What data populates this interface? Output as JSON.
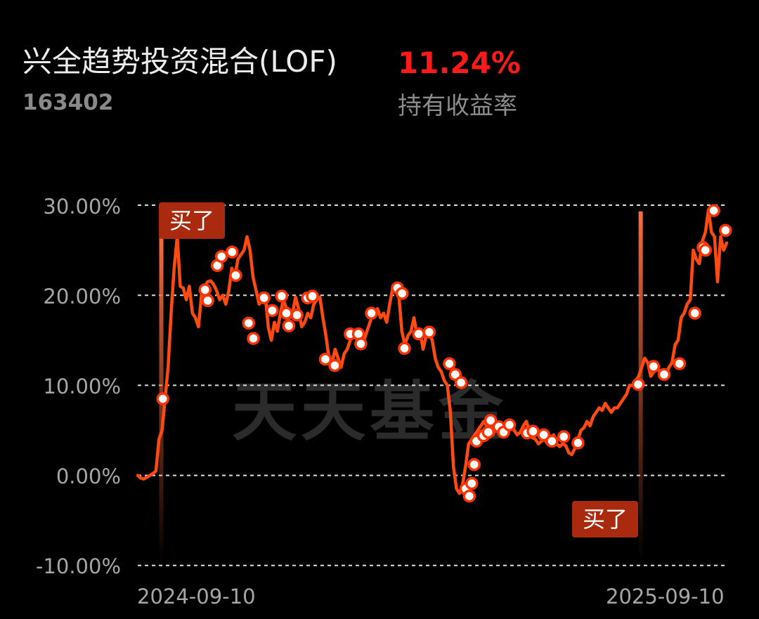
{
  "fund": {
    "name": "兴全趋势投资混合(LOF)",
    "code": "163402",
    "return_value": "11.24%",
    "return_label": "持有收益率"
  },
  "watermark": "天天基金",
  "colors": {
    "line": "#ff4a12",
    "marker_fill": "#ffffff",
    "marker_stroke": "#ff3300",
    "buy_tag_bg": "#a92a0e",
    "return_red": "#ff1a1a",
    "grid": "#dddddd"
  },
  "chart_data": {
    "type": "line",
    "y_ticks": [
      "30.00%",
      "20.00%",
      "10.00%",
      "0.00%",
      "-10.00%"
    ],
    "y_tick_values": [
      30,
      20,
      10,
      0,
      -10
    ],
    "ylim": [
      -10,
      30
    ],
    "x_tick_labels": [
      "2024-09-10",
      "2025-09-10"
    ],
    "grid": "horizontal dashed",
    "series": [
      {
        "values": [
          0,
          -0.3,
          -0.4,
          -0.2,
          0,
          0.2,
          0.5,
          4,
          5,
          8.5,
          12,
          18,
          23,
          26.5,
          21,
          20.8,
          19.5,
          21,
          18,
          17.5,
          16.5,
          20,
          21,
          21.5,
          21.6,
          21.2,
          20.5,
          19.5,
          20,
          19,
          20.5,
          23,
          22,
          24,
          24.5,
          25,
          26.5,
          25,
          22,
          20.5,
          19,
          19.5,
          20,
          16.5,
          15,
          17,
          16,
          18,
          19.5,
          18.5,
          17.5,
          18,
          19.8,
          18.5,
          16.5,
          17,
          18,
          17.5,
          19,
          19.5,
          19.8,
          17.5,
          15.5,
          13,
          12.5,
          14,
          13,
          12,
          13.5,
          14,
          15,
          15.5,
          16,
          15.5,
          14.5,
          15.5,
          16.5,
          17.5,
          18,
          18.5,
          17.5,
          18,
          17,
          19,
          20.8,
          20.5,
          20,
          16,
          14.5,
          15.5,
          16,
          17.5,
          15.5,
          16,
          14,
          15.5,
          15.8,
          15,
          13,
          12,
          11.5,
          10.5,
          10,
          7,
          1,
          -1.5,
          -2,
          -1,
          1,
          3.5,
          4,
          4.5,
          5,
          5.5,
          6,
          5.5,
          5,
          4.5,
          5.5,
          5,
          4.5,
          5.5,
          5,
          6,
          5,
          4.5,
          4.8,
          5.5,
          6,
          5,
          4.2,
          4,
          3.5,
          3.8,
          4,
          3.5,
          4.2,
          4.5,
          3.5,
          3.2,
          3.5,
          3.3,
          2.5,
          2.3,
          3,
          4,
          5,
          5.3,
          6,
          5.5,
          6.5,
          7,
          7.5,
          7.2,
          8,
          7.5,
          7,
          7.5,
          7.5,
          8,
          8.5,
          9,
          10,
          10,
          10.5,
          11,
          12,
          13,
          12.5,
          11,
          11.5,
          12,
          11.5,
          11,
          11.2,
          12,
          12.5,
          14.5,
          15,
          17.5,
          18,
          19,
          19.5,
          25,
          24,
          23.5,
          26,
          27,
          29.5,
          27,
          26.5,
          21.5,
          26.5,
          25,
          25.8
        ],
        "marker_values": [
          8.5,
          20.6,
          19.4,
          23.3,
          24.3,
          24.8,
          22.2,
          16.9,
          15.2,
          19.7,
          18.3,
          19.9,
          18.0,
          16.6,
          17.8,
          19.7,
          19.9,
          12.9,
          12.2,
          15.7,
          15.7,
          14.6,
          18.0,
          20.8,
          20.2,
          14.1,
          15.7,
          15.9,
          12.4,
          11.2,
          10.3,
          -1.5,
          -2.3,
          -0.9,
          1.2,
          3.8,
          4.4,
          4.8,
          6.1,
          5.4,
          4.8,
          5.6,
          4.7,
          4.9,
          4.5,
          3.8,
          4.3,
          3.6,
          10.1,
          12.1,
          11.2,
          12.4,
          18.0,
          25.3,
          25.0,
          29.4,
          27.2
        ],
        "marker_fracs": [
          0.0426,
          0.1142,
          0.1189,
          0.1351,
          0.1423,
          0.1603,
          0.1663,
          0.1883,
          0.1963,
          0.2144,
          0.2284,
          0.2444,
          0.2524,
          0.2564,
          0.2704,
          0.2885,
          0.2965,
          0.3186,
          0.3346,
          0.3607,
          0.3747,
          0.3787,
          0.3968,
          0.4409,
          0.4489,
          0.4529,
          0.477,
          0.495,
          0.5291,
          0.5391,
          0.5491,
          0.5571,
          0.5631,
          0.5672,
          0.5712,
          0.5752,
          0.5872,
          0.5952,
          0.5992,
          0.6132,
          0.6212,
          0.6313,
          0.6613,
          0.6713,
          0.6894,
          0.7034,
          0.7234,
          0.7475,
          0.8497,
          0.8758,
          0.8938,
          0.9198,
          0.9459,
          0.9599,
          0.9639,
          0.978,
          0.998
        ]
      }
    ],
    "buy_markers": [
      {
        "label": "买了",
        "frac": 0.04,
        "value": 27
      },
      {
        "label": "买了",
        "frac": 0.854,
        "value": 29.3
      }
    ]
  }
}
